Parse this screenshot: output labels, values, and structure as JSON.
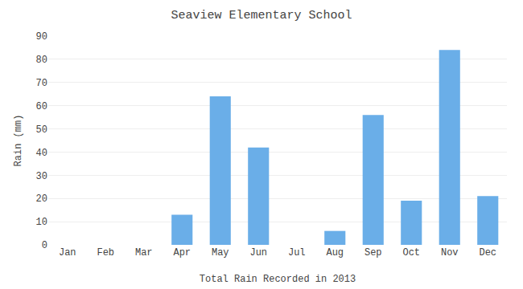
{
  "chart_data": {
    "type": "bar",
    "title": "Seaview Elementary School",
    "xlabel": "Total Rain Recorded in 2013",
    "ylabel": "Rain (mm)",
    "categories": [
      "Jan",
      "Feb",
      "Mar",
      "Apr",
      "May",
      "Jun",
      "Jul",
      "Aug",
      "Sep",
      "Oct",
      "Nov",
      "Dec"
    ],
    "values": [
      0,
      0,
      0,
      13,
      64,
      42,
      0,
      6,
      56,
      19,
      84,
      21
    ],
    "color": "#6aaee8",
    "ylim": [
      0,
      90
    ],
    "yticks": [
      0,
      10,
      20,
      30,
      40,
      50,
      60,
      70,
      80,
      90
    ],
    "grid": true
  }
}
